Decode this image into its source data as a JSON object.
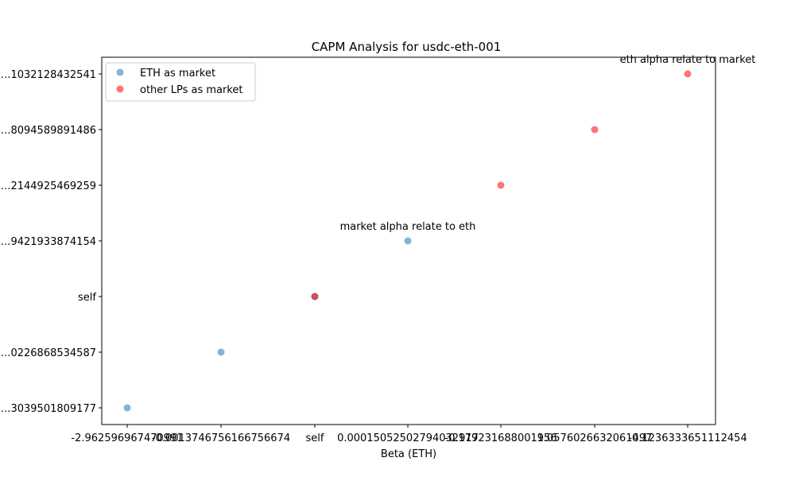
{
  "chart_data": {
    "type": "scatter",
    "title": "CAPM Analysis for usdc-eth-001",
    "xlabel": "Beta (ETH)",
    "ylabel": "",
    "x_ticks": [
      "-2.962596967470991",
      "-0.0013746756166756674",
      "self",
      "0.00015052502794032917",
      "-0.179231688001956",
      "1.0576026632061497",
      "-0.1236333651112454"
    ],
    "y_ticks": [
      "…3039501809177",
      "…0226868534587",
      "self",
      "…9421933874154",
      "…2144925469259",
      "…8094589891486",
      "…1032128432541"
    ],
    "series": [
      {
        "name": "ETH as market",
        "color": "#1f77b4",
        "points": [
          {
            "x": "-2.962596967470991",
            "y": "…3039501809177"
          },
          {
            "x": "-0.0013746756166756674",
            "y": "…0226868534587"
          },
          {
            "x": "self",
            "y": "self"
          },
          {
            "x": "0.00015052502794032917",
            "y": "…9421933874154"
          }
        ]
      },
      {
        "name": "other LPs as market",
        "color": "#ff0000",
        "points": [
          {
            "x": "self",
            "y": "self"
          },
          {
            "x": "-0.179231688001956",
            "y": "…2144925469259"
          },
          {
            "x": "1.0576026632061497",
            "y": "…8094589891486"
          },
          {
            "x": "-0.1236333651112454",
            "y": "…1032128432541"
          }
        ]
      }
    ],
    "annotations": [
      {
        "text": "market alpha relate to eth",
        "x": "0.00015052502794032917",
        "y": "…9421933874154"
      },
      {
        "text": "eth alpha relate to market",
        "x": "-0.1236333651112454",
        "y": "…1032128432541"
      }
    ],
    "legend_position": "top-left",
    "grid": false
  }
}
